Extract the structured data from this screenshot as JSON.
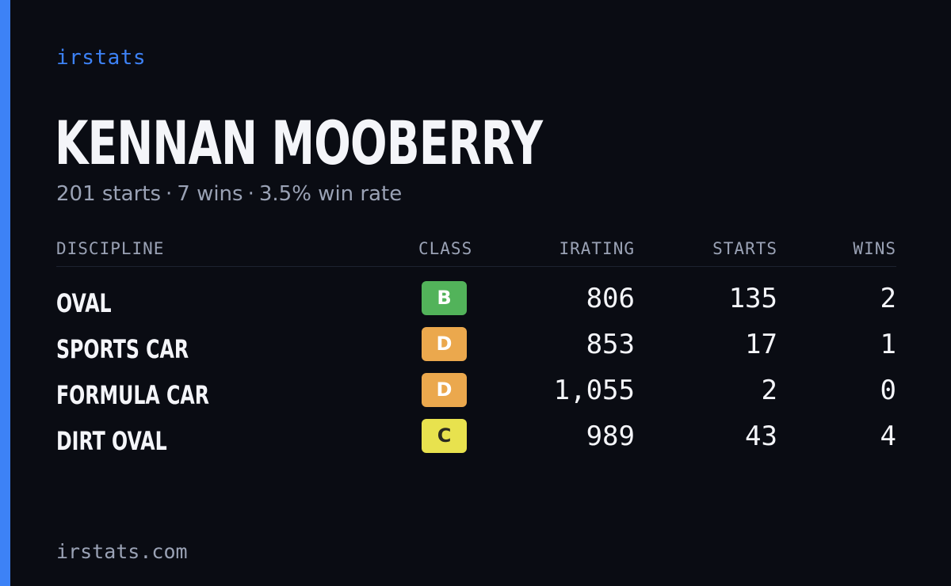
{
  "brand": "irstats",
  "driver": {
    "name": "KENNAN MOOBERRY",
    "starts_text": "201 starts",
    "wins_text": "7 wins",
    "win_rate_text": "3.5% win rate",
    "separator": "·"
  },
  "table": {
    "headers": {
      "discipline": "DISCIPLINE",
      "class": "CLASS",
      "irating": "IRATING",
      "starts": "STARTS",
      "wins": "WINS"
    },
    "rows": [
      {
        "discipline": "OVAL",
        "class": "B",
        "irating": "806",
        "starts": "135",
        "wins": "2"
      },
      {
        "discipline": "SPORTS CAR",
        "class": "D",
        "irating": "853",
        "starts": "17",
        "wins": "1"
      },
      {
        "discipline": "FORMULA CAR",
        "class": "D",
        "irating": "1,055",
        "starts": "2",
        "wins": "0"
      },
      {
        "discipline": "DIRT OVAL",
        "class": "C",
        "irating": "989",
        "starts": "43",
        "wins": "4"
      }
    ]
  },
  "footer": {
    "url": "irstats.com"
  },
  "colors": {
    "background": "#0a0c13",
    "accent": "#3d82f6",
    "text_primary": "#f4f5f9",
    "text_muted": "#9aa2b5",
    "class_B": "#52b35a",
    "class_C": "#e8e24e",
    "class_D": "#eba84d"
  }
}
